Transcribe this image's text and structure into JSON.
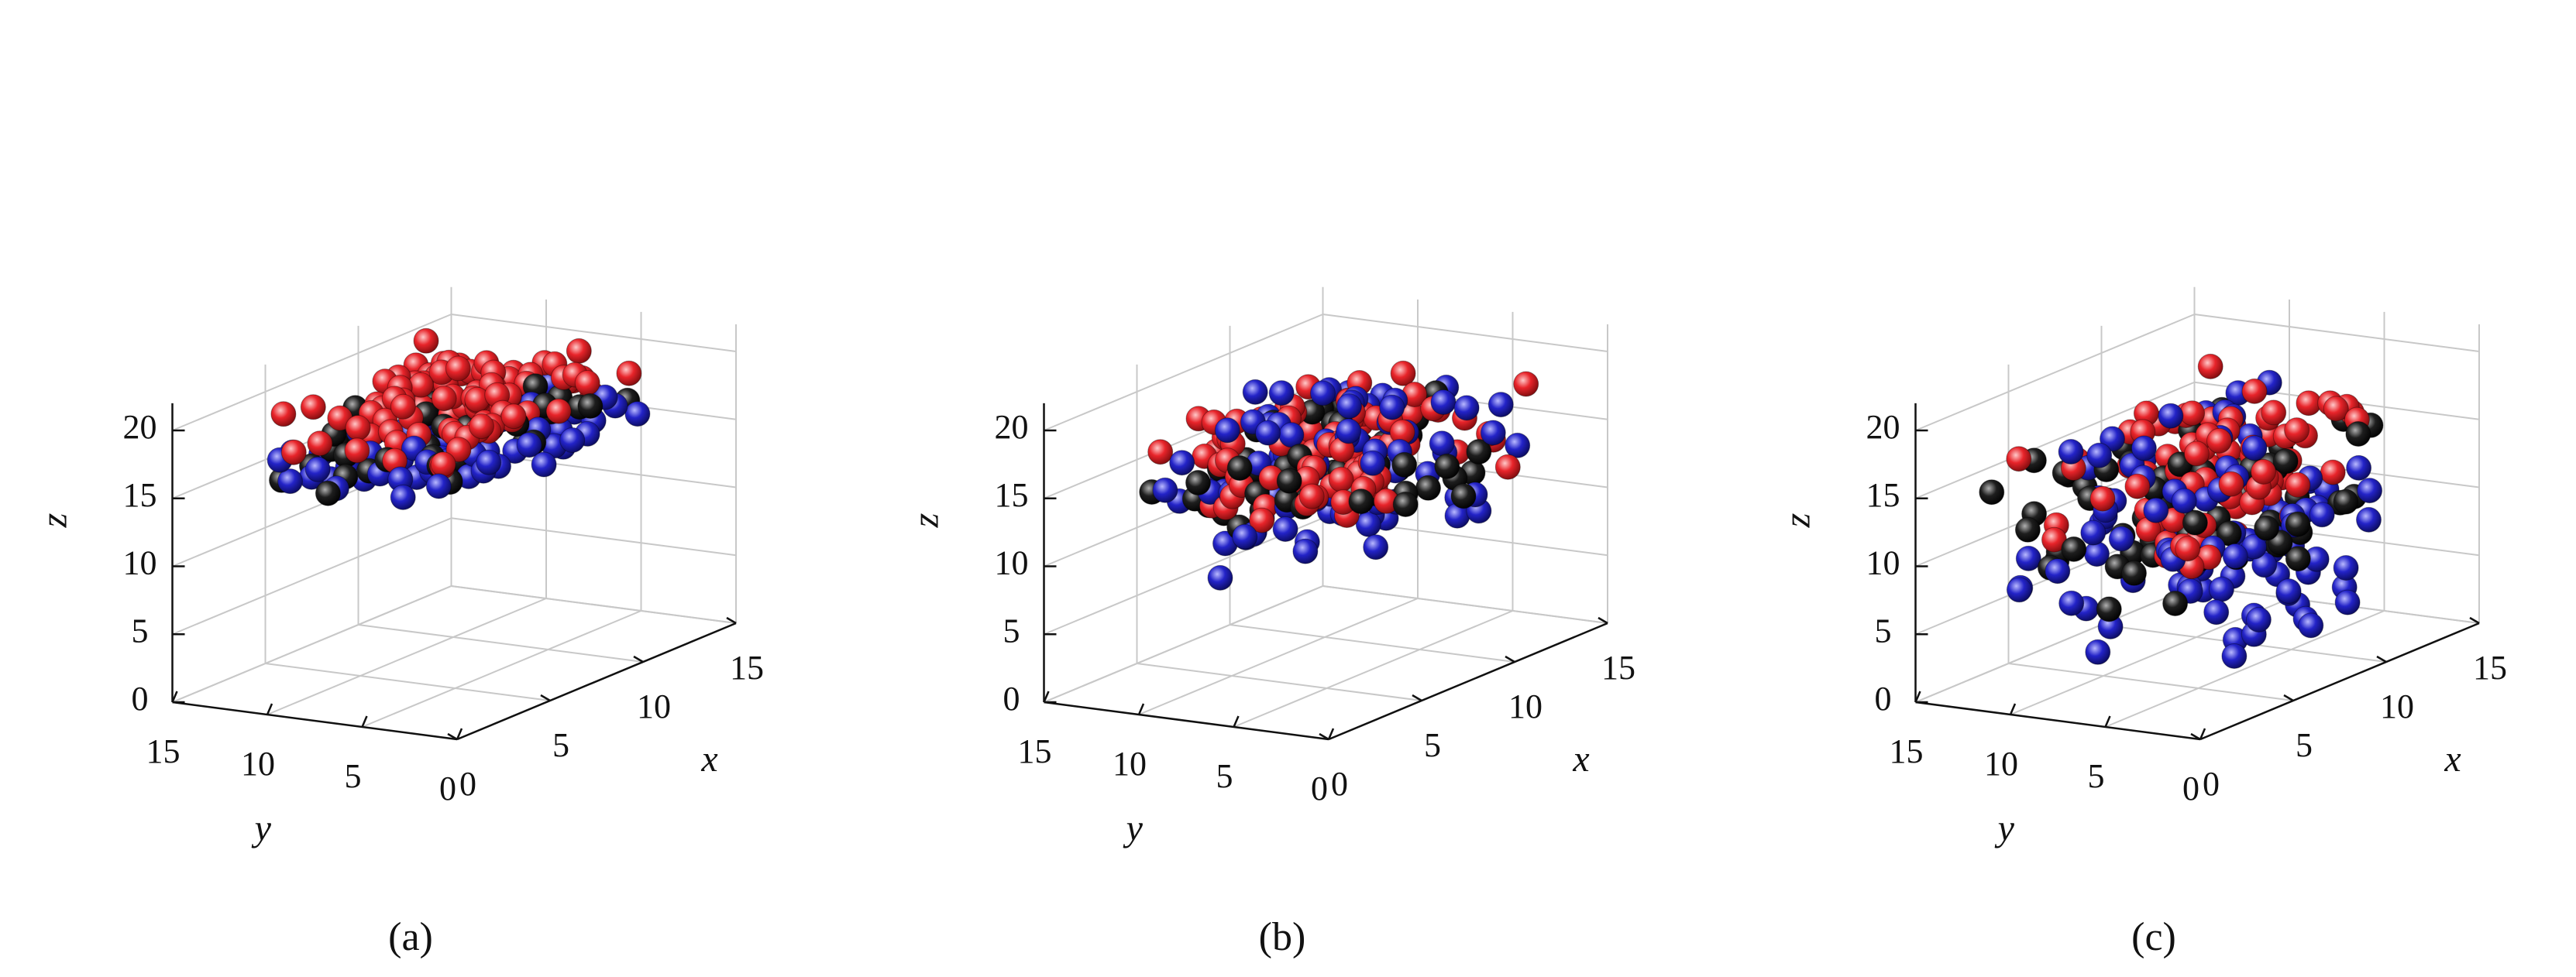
{
  "colors": {
    "red": "#e8242a",
    "blue": "#2323c8",
    "black": "#1e1e1e",
    "grid": "#c8c8c8",
    "axis": "#111111"
  },
  "chart_data": [
    {
      "type": "scatter3d",
      "panel_label": "(a)",
      "xlabel": "x",
      "ylabel": "y",
      "zlabel": "z",
      "xlim": [
        0,
        15
      ],
      "ylim": [
        0,
        15
      ],
      "zlim": [
        0,
        22
      ],
      "x_ticks": [
        "0",
        "5",
        "10",
        "15"
      ],
      "y_ticks": [
        "0",
        "5",
        "10",
        "15"
      ],
      "z_ticks": [
        "0",
        "5",
        "10",
        "15",
        "20"
      ],
      "grid": true,
      "series": [
        {
          "color": "red",
          "z_range": [
            18.0,
            20.6
          ],
          "xy_spread": 1.0,
          "count": 90
        },
        {
          "color": "black",
          "z_range": [
            15.5,
            18.5
          ],
          "xy_spread": 1.05,
          "count": 55
        },
        {
          "color": "blue",
          "z_range": [
            14.5,
            18.2
          ],
          "xy_spread": 1.1,
          "count": 70
        }
      ]
    },
    {
      "type": "scatter3d",
      "panel_label": "(b)",
      "xlabel": "x",
      "ylabel": "y",
      "zlabel": "z",
      "xlim": [
        0,
        15
      ],
      "ylim": [
        0,
        15
      ],
      "zlim": [
        0,
        22
      ],
      "x_ticks": [
        "0",
        "5",
        "10",
        "15"
      ],
      "y_ticks": [
        "0",
        "5",
        "10",
        "15"
      ],
      "z_ticks": [
        "0",
        "5",
        "10",
        "15",
        "20"
      ],
      "grid": true,
      "series": [
        {
          "color": "red",
          "z_range": [
            13.0,
            18.5
          ],
          "xy_spread": 0.9,
          "count": 90
        },
        {
          "color": "black",
          "z_range": [
            11.0,
            17.5
          ],
          "xy_spread": 1.05,
          "count": 60
        },
        {
          "color": "blue",
          "z_range": [
            8.5,
            19.8
          ],
          "xy_spread": 1.15,
          "count": 85
        }
      ]
    },
    {
      "type": "scatter3d",
      "panel_label": "(c)",
      "xlabel": "x",
      "ylabel": "y",
      "zlabel": "z",
      "xlim": [
        0,
        15
      ],
      "ylim": [
        0,
        15
      ],
      "zlim": [
        0,
        22
      ],
      "x_ticks": [
        "0",
        "5",
        "10",
        "15"
      ],
      "y_ticks": [
        "0",
        "5",
        "10",
        "15"
      ],
      "z_ticks": [
        "0",
        "5",
        "10",
        "15",
        "20"
      ],
      "grid": true,
      "series": [
        {
          "color": "red",
          "z_range": [
            10.0,
            17.8
          ],
          "xy_spread": 0.9,
          "count": 90
        },
        {
          "color": "black",
          "z_range": [
            7.0,
            16.5
          ],
          "xy_spread": 1.1,
          "count": 70
        },
        {
          "color": "blue",
          "z_range": [
            2.5,
            18.0
          ],
          "xy_spread": 1.15,
          "count": 105
        }
      ]
    }
  ]
}
